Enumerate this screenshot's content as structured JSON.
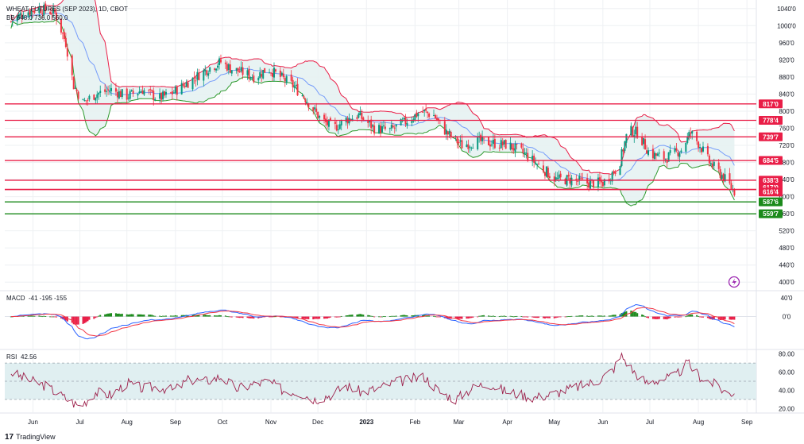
{
  "title": "WHEAT FUTURES (SEP 2023), 1D, CBOT",
  "indicator_bb_label": "BB 648.0 736.0 560.0",
  "brand": "TradingView",
  "brand_logo": "17",
  "colors": {
    "up": "#089981",
    "down": "#f23645",
    "hline_red": "#e91e47",
    "hline_green": "#1b8a1b",
    "bb_upper": "#e91e47",
    "bb_lower": "#2e9a2e",
    "bb_basis": "#2962ff",
    "bb_fill": "#e6f2f2",
    "macd": "#2962ff",
    "signal": "#f23645",
    "rsi": "#9c1f4a",
    "rsi_band": "#e0eff1",
    "grid": "#eef0f3"
  },
  "chart_data": [
    {
      "type": "candlestick",
      "name": "price",
      "title": "WHEAT FUTURES (SEP 2023), 1D, CBOT",
      "ylim": [
        380,
        1060
      ],
      "price_ticks": [
        "1040'0",
        "1000'0",
        "960'0",
        "920'0",
        "880'0",
        "840'0",
        "800'0",
        "760'0",
        "720'0",
        "680'0",
        "640'0",
        "600'0",
        "560'0",
        "520'0",
        "480'0",
        "440'0",
        "400'0"
      ],
      "x_ticks": [
        "Jun",
        "Jul",
        "Aug",
        "Sep",
        "Oct",
        "Nov",
        "Dec",
        "2023",
        "Feb",
        "Mar",
        "Apr",
        "May",
        "Jun",
        "Jul",
        "Aug",
        "Sep"
      ],
      "x_tick_days": [
        -200,
        -170,
        -140,
        -109,
        -79,
        -48,
        -18,
        13,
        44,
        72,
        103,
        133,
        164,
        194,
        225,
        256
      ],
      "price_anchors": [
        [
          -214,
          1010
        ],
        [
          -206,
          1030
        ],
        [
          -196,
          1040
        ],
        [
          -186,
          1030
        ],
        [
          -179,
          960
        ],
        [
          -174,
          860
        ],
        [
          -168,
          820
        ],
        [
          -160,
          840
        ],
        [
          -150,
          850
        ],
        [
          -140,
          835
        ],
        [
          -130,
          850
        ],
        [
          -120,
          830
        ],
        [
          -112,
          840
        ],
        [
          -104,
          860
        ],
        [
          -96,
          880
        ],
        [
          -88,
          900
        ],
        [
          -80,
          915
        ],
        [
          -74,
          900
        ],
        [
          -66,
          890
        ],
        [
          -58,
          880
        ],
        [
          -50,
          900
        ],
        [
          -42,
          880
        ],
        [
          -34,
          860
        ],
        [
          -26,
          830
        ],
        [
          -16,
          780
        ],
        [
          -8,
          760
        ],
        [
          0,
          780
        ],
        [
          8,
          790
        ],
        [
          18,
          760
        ],
        [
          28,
          755
        ],
        [
          38,
          775
        ],
        [
          48,
          800
        ],
        [
          56,
          790
        ],
        [
          64,
          750
        ],
        [
          74,
          720
        ],
        [
          84,
          730
        ],
        [
          94,
          725
        ],
        [
          104,
          720
        ],
        [
          114,
          700
        ],
        [
          124,
          670
        ],
        [
          134,
          640
        ],
        [
          144,
          640
        ],
        [
          154,
          632
        ],
        [
          164,
          632
        ],
        [
          174,
          670
        ],
        [
          180,
          755
        ],
        [
          186,
          750
        ],
        [
          194,
          700
        ],
        [
          204,
          690
        ],
        [
          214,
          710
        ],
        [
          220,
          750
        ],
        [
          226,
          720
        ],
        [
          232,
          680
        ],
        [
          240,
          650
        ],
        [
          248,
          612
        ]
      ],
      "horizontal_levels": [
        {
          "label": "817'0",
          "value": 817.0,
          "color": "hline_red"
        },
        {
          "label": "778'4",
          "value": 778.5,
          "color": "hline_red"
        },
        {
          "label": "739'7",
          "value": 739.9,
          "color": "hline_red"
        },
        {
          "label": "684'5",
          "value": 684.6,
          "color": "hline_red"
        },
        {
          "label": "638'3",
          "value": 638.4,
          "color": "hline_red"
        },
        {
          "label": "617'0",
          "value": 617.0,
          "color": "hline_red"
        },
        {
          "label": "616'4",
          "value": 616.5,
          "color": "hline_red"
        },
        {
          "label": "587'6",
          "value": 587.75,
          "color": "hline_green"
        },
        {
          "label": "559'7",
          "value": 559.9,
          "color": "hline_green"
        }
      ]
    },
    {
      "type": "bar",
      "name": "MACD",
      "title": "MACD",
      "values_label": "-41  -195  -155",
      "ylim": [
        -70,
        55
      ],
      "ticks": [
        "40'0",
        "0'0"
      ]
    },
    {
      "type": "line",
      "name": "RSI",
      "title": "RSI",
      "value_label": "42.56",
      "ylim": [
        15,
        85
      ],
      "band": [
        30,
        70
      ],
      "midline": 50,
      "ticks": [
        "80.00",
        "60.00",
        "40.00",
        "20.00"
      ],
      "rsi_anchors": [
        [
          -214,
          60
        ],
        [
          -204,
          52
        ],
        [
          -192,
          45
        ],
        [
          -180,
          32
        ],
        [
          -170,
          22
        ],
        [
          -160,
          38
        ],
        [
          -150,
          35
        ],
        [
          -140,
          48
        ],
        [
          -130,
          42
        ],
        [
          -120,
          44
        ],
        [
          -110,
          40
        ],
        [
          -100,
          52
        ],
        [
          -90,
          50
        ],
        [
          -80,
          55
        ],
        [
          -70,
          42
        ],
        [
          -60,
          46
        ],
        [
          -50,
          50
        ],
        [
          -40,
          40
        ],
        [
          -30,
          38
        ],
        [
          -20,
          30
        ],
        [
          -10,
          35
        ],
        [
          0,
          45
        ],
        [
          10,
          38
        ],
        [
          20,
          42
        ],
        [
          30,
          48
        ],
        [
          40,
          52
        ],
        [
          50,
          55
        ],
        [
          60,
          38
        ],
        [
          70,
          30
        ],
        [
          80,
          42
        ],
        [
          90,
          48
        ],
        [
          100,
          40
        ],
        [
          110,
          36
        ],
        [
          120,
          32
        ],
        [
          130,
          35
        ],
        [
          140,
          40
        ],
        [
          150,
          45
        ],
        [
          160,
          50
        ],
        [
          170,
          62
        ],
        [
          176,
          78
        ],
        [
          184,
          60
        ],
        [
          192,
          48
        ],
        [
          200,
          52
        ],
        [
          210,
          55
        ],
        [
          218,
          70
        ],
        [
          226,
          55
        ],
        [
          236,
          46
        ],
        [
          244,
          36
        ],
        [
          250,
          40
        ]
      ]
    }
  ]
}
